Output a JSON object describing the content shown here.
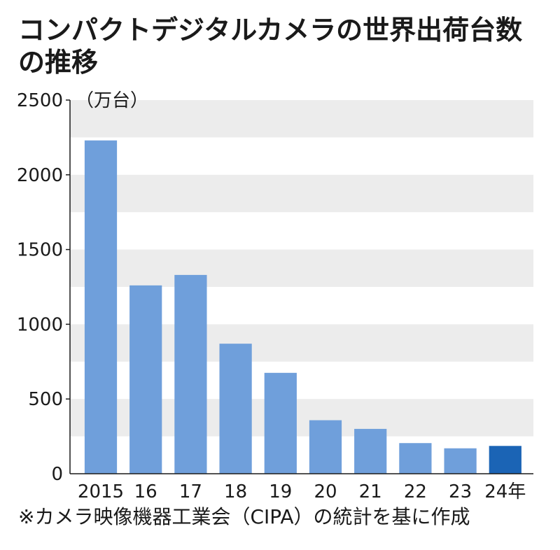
{
  "chart_data": {
    "type": "bar",
    "title_line1": "コンパクトデジタルカメラの世界出荷台数",
    "title_line2": "の推移",
    "unit": "（万台）",
    "categories": [
      "2015",
      "16",
      "17",
      "18",
      "19",
      "20",
      "21",
      "22",
      "23",
      "24年"
    ],
    "values": [
      2230,
      1260,
      1330,
      870,
      675,
      358,
      300,
      205,
      170,
      186
    ],
    "y_ticks": [
      0,
      500,
      1000,
      1500,
      2000,
      2500
    ],
    "ylim": [
      0,
      2500
    ],
    "grid": "alternating horizontal bands",
    "highlight_index": 9,
    "footnote": "※カメラ映像機器工業会（CIPA）の統計を基に作成",
    "colors": {
      "bar": "#6f9fdb",
      "highlight": "#1b64b5",
      "band": "#ececec",
      "axis": "#1a1a1a"
    }
  }
}
